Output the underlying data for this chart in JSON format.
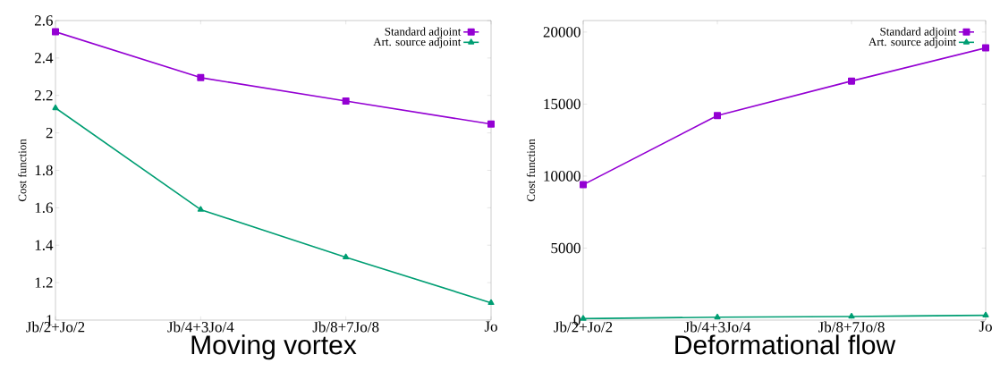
{
  "chart_data": [
    {
      "type": "line",
      "xlabel": "Moving vortex",
      "ylabel": "Cost function",
      "categories": [
        "Jb/2+Jo/2",
        "Jb/4+3Jo/4",
        "Jb/8+7Jo/8",
        "Jo"
      ],
      "ylim": [
        1,
        2.6
      ],
      "yticks": [
        1,
        1.2,
        1.4,
        1.6,
        1.8,
        2,
        2.2,
        2.4,
        2.6
      ],
      "legend": "top right",
      "grid": false,
      "series": [
        {
          "name": "Standard adjoint",
          "color": "#9400d3",
          "marker": "square",
          "values": [
            2.54,
            2.295,
            2.17,
            2.047
          ]
        },
        {
          "name": "Art. source adjoint",
          "color": "#009e73",
          "marker": "triangle",
          "values": [
            2.133,
            1.59,
            1.336,
            1.092
          ]
        }
      ]
    },
    {
      "type": "line",
      "xlabel": "Deformational flow",
      "ylabel": "Cost function",
      "categories": [
        "Jb/2+Jo/2",
        "Jb/4+3Jo/4",
        "Jb/8+7Jo/8",
        "Jo"
      ],
      "ylim": [
        0,
        20800
      ],
      "yticks": [
        0,
        5000,
        10000,
        15000,
        20000
      ],
      "legend": "top right",
      "grid": false,
      "series": [
        {
          "name": "Standard adjoint",
          "color": "#9400d3",
          "marker": "square",
          "values": [
            9400,
            14200,
            16600,
            18900
          ]
        },
        {
          "name": "Art. source adjoint",
          "color": "#009e73",
          "marker": "triangle",
          "values": [
            100,
            200,
            250,
            330
          ]
        }
      ]
    }
  ]
}
